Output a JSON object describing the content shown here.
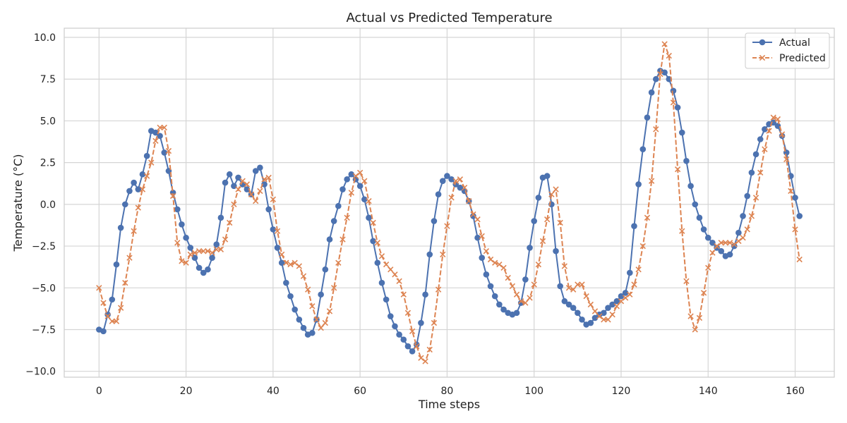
{
  "chart_data": {
    "type": "line",
    "title": "Actual vs Predicted Temperature",
    "xlabel": "Time steps",
    "ylabel": "Temperature (°C)",
    "xlim": [
      -8,
      169
    ],
    "ylim": [
      -10.35,
      10.55
    ],
    "xticks": [
      0,
      20,
      40,
      60,
      80,
      100,
      120,
      140,
      160
    ],
    "yticks": [
      -10.0,
      -7.5,
      -5.0,
      -2.5,
      0.0,
      2.5,
      5.0,
      7.5,
      10.0
    ],
    "ytick_labels": [
      "−10.0",
      "−7.5",
      "−5.0",
      "−2.5",
      "0.0",
      "2.5",
      "5.0",
      "7.5",
      "10.0"
    ],
    "grid": true,
    "legend_position": "top-right",
    "series": [
      {
        "name": "Actual",
        "color": "#4c72b0",
        "marker": "circle",
        "linestyle": "solid",
        "x": [
          0,
          1,
          2,
          3,
          4,
          5,
          6,
          7,
          8,
          9,
          10,
          11,
          12,
          13,
          14,
          15,
          16,
          17,
          18,
          19,
          20,
          21,
          22,
          23,
          24,
          25,
          26,
          27,
          28,
          29,
          30,
          31,
          32,
          33,
          34,
          35,
          36,
          37,
          38,
          39,
          40,
          41,
          42,
          43,
          44,
          45,
          46,
          47,
          48,
          49,
          50,
          51,
          52,
          53,
          54,
          55,
          56,
          57,
          58,
          59,
          60,
          61,
          62,
          63,
          64,
          65,
          66,
          67,
          68,
          69,
          70,
          71,
          72,
          73,
          74,
          75,
          76,
          77,
          78,
          79,
          80,
          81,
          82,
          83,
          84,
          85,
          86,
          87,
          88,
          89,
          90,
          91,
          92,
          93,
          94,
          95,
          96,
          97,
          98,
          99,
          100,
          101,
          102,
          103,
          104,
          105,
          106,
          107,
          108,
          109,
          110,
          111,
          112,
          113,
          114,
          115,
          116,
          117,
          118,
          119,
          120,
          121,
          122,
          123,
          124,
          125,
          126,
          127,
          128,
          129,
          130,
          131,
          132,
          133,
          134,
          135,
          136,
          137,
          138,
          139,
          140,
          141,
          142,
          143,
          144,
          145,
          146,
          147,
          148,
          149,
          150,
          151,
          152,
          153,
          154,
          155,
          156,
          157,
          158,
          159,
          160,
          161
        ],
        "y": [
          -7.5,
          -7.6,
          -6.6,
          -5.7,
          -3.6,
          -1.4,
          0.0,
          0.8,
          1.3,
          0.9,
          1.8,
          2.9,
          4.4,
          4.3,
          4.1,
          3.1,
          2.0,
          0.7,
          -0.3,
          -1.2,
          -2.0,
          -2.6,
          -3.2,
          -3.8,
          -4.1,
          -3.9,
          -3.2,
          -2.4,
          -0.8,
          1.3,
          1.8,
          1.1,
          1.6,
          1.2,
          0.9,
          0.6,
          2.0,
          2.2,
          1.2,
          -0.3,
          -1.5,
          -2.6,
          -3.5,
          -4.7,
          -5.5,
          -6.3,
          -6.9,
          -7.4,
          -7.8,
          -7.7,
          -6.9,
          -5.4,
          -3.9,
          -2.1,
          -1.0,
          -0.1,
          0.9,
          1.5,
          1.8,
          1.5,
          1.1,
          0.3,
          -0.8,
          -2.2,
          -3.5,
          -4.7,
          -5.7,
          -6.7,
          -7.3,
          -7.8,
          -8.1,
          -8.5,
          -8.8,
          -8.4,
          -7.1,
          -5.4,
          -3.0,
          -1.0,
          0.6,
          1.4,
          1.7,
          1.5,
          1.2,
          1.0,
          0.8,
          0.2,
          -0.7,
          -2.0,
          -3.2,
          -4.2,
          -4.9,
          -5.5,
          -6.0,
          -6.3,
          -6.5,
          -6.6,
          -6.5,
          -5.9,
          -4.5,
          -2.6,
          -1.0,
          0.4,
          1.6,
          1.7,
          0.0,
          -2.8,
          -4.9,
          -5.8,
          -6.0,
          -6.2,
          -6.5,
          -6.9,
          -7.2,
          -7.1,
          -6.8,
          -6.6,
          -6.5,
          -6.2,
          -6.0,
          -5.8,
          -5.5,
          -5.3,
          -4.1,
          -1.3,
          1.2,
          3.3,
          5.2,
          6.7,
          7.5,
          8.0,
          7.9,
          7.5,
          6.8,
          5.8,
          4.3,
          2.6,
          1.1,
          0.0,
          -0.8,
          -1.5,
          -2.0,
          -2.3,
          -2.6,
          -2.8,
          -3.1,
          -3.0,
          -2.5,
          -1.7,
          -0.7,
          0.5,
          1.9,
          3.0,
          3.9,
          4.5,
          4.8,
          4.9,
          4.7,
          4.1,
          3.1,
          1.7,
          0.4,
          -0.7
        ]
      },
      {
        "name": "Predicted",
        "color": "#dd8452",
        "marker": "x",
        "linestyle": "dashed",
        "x": [
          0,
          1,
          2,
          3,
          4,
          5,
          6,
          7,
          8,
          9,
          10,
          11,
          12,
          13,
          14,
          15,
          16,
          17,
          18,
          19,
          20,
          21,
          22,
          23,
          24,
          25,
          26,
          27,
          28,
          29,
          30,
          31,
          32,
          33,
          34,
          35,
          36,
          37,
          38,
          39,
          40,
          41,
          42,
          43,
          44,
          45,
          46,
          47,
          48,
          49,
          50,
          51,
          52,
          53,
          54,
          55,
          56,
          57,
          58,
          59,
          60,
          61,
          62,
          63,
          64,
          65,
          66,
          67,
          68,
          69,
          70,
          71,
          72,
          73,
          74,
          75,
          76,
          77,
          78,
          79,
          80,
          81,
          82,
          83,
          84,
          85,
          86,
          87,
          88,
          89,
          90,
          91,
          92,
          93,
          94,
          95,
          96,
          97,
          98,
          99,
          100,
          101,
          102,
          103,
          104,
          105,
          106,
          107,
          108,
          109,
          110,
          111,
          112,
          113,
          114,
          115,
          116,
          117,
          118,
          119,
          120,
          121,
          122,
          123,
          124,
          125,
          126,
          127,
          128,
          129,
          130,
          131,
          132,
          133,
          134,
          135,
          136,
          137,
          138,
          139,
          140,
          141,
          142,
          143,
          144,
          145,
          146,
          147,
          148,
          149,
          150,
          151,
          152,
          153,
          154,
          155,
          156,
          157,
          158,
          159,
          160,
          161
        ],
        "y": [
          -5.0,
          -5.9,
          -6.7,
          -7.0,
          -7.0,
          -6.2,
          -4.7,
          -3.2,
          -1.6,
          -0.2,
          0.9,
          1.7,
          2.5,
          3.8,
          4.6,
          4.6,
          3.2,
          0.5,
          -2.3,
          -3.4,
          -3.5,
          -3.0,
          -2.9,
          -2.8,
          -2.8,
          -2.8,
          -2.9,
          -2.7,
          -2.7,
          -2.1,
          -1.1,
          0.0,
          0.9,
          1.4,
          1.2,
          0.6,
          0.2,
          0.8,
          1.5,
          1.6,
          0.3,
          -1.6,
          -3.0,
          -3.5,
          -3.6,
          -3.5,
          -3.7,
          -4.3,
          -5.1,
          -6.1,
          -6.9,
          -7.4,
          -7.1,
          -6.4,
          -5.0,
          -3.5,
          -2.1,
          -0.8,
          0.7,
          1.7,
          1.9,
          1.4,
          0.2,
          -1.1,
          -2.3,
          -3.1,
          -3.6,
          -3.9,
          -4.2,
          -4.6,
          -5.4,
          -6.5,
          -7.6,
          -8.5,
          -9.2,
          -9.4,
          -8.7,
          -7.1,
          -5.1,
          -3.0,
          -1.3,
          0.4,
          1.4,
          1.5,
          1.0,
          0.2,
          -0.6,
          -0.9,
          -1.9,
          -2.8,
          -3.3,
          -3.5,
          -3.6,
          -3.8,
          -4.4,
          -4.9,
          -5.4,
          -5.8,
          -5.9,
          -5.6,
          -4.8,
          -3.6,
          -2.2,
          -0.9,
          0.6,
          0.9,
          -1.1,
          -3.7,
          -5.0,
          -5.1,
          -4.8,
          -4.8,
          -5.5,
          -6.0,
          -6.4,
          -6.7,
          -6.9,
          -6.9,
          -6.6,
          -6.1,
          -5.8,
          -5.6,
          -5.4,
          -4.8,
          -3.9,
          -2.5,
          -0.8,
          1.4,
          4.5,
          7.8,
          9.6,
          8.9,
          6.1,
          2.1,
          -1.6,
          -4.6,
          -6.7,
          -7.5,
          -6.8,
          -5.3,
          -3.8,
          -2.9,
          -2.5,
          -2.3,
          -2.3,
          -2.3,
          -2.4,
          -2.2,
          -2.0,
          -1.5,
          -0.7,
          0.4,
          1.9,
          3.3,
          4.4,
          5.2,
          5.1,
          4.2,
          2.7,
          0.8,
          -1.5,
          -3.3
        ]
      }
    ]
  }
}
